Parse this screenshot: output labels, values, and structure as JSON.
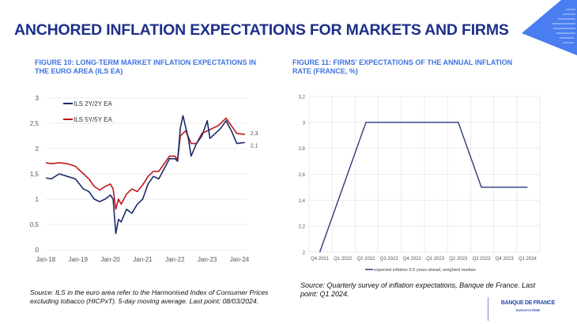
{
  "slide_title": "ANCHORED INFLATION EXPECTATIONS FOR MARKETS AND FIRMS",
  "figure10": {
    "title": "FIGURE 10: LONG-TERM MARKET INFLATION EXPECTATIONS IN THE EURO AREA (ILS EA)",
    "source": "Source: ILS in the euro area refer to the Harmonised Index of Consumer Prices excluding tobacco (HICPxT). 5-day moving average. Last point: 08/03/2024."
  },
  "figure11": {
    "title": "FIGURE 11: FIRMS' EXPECTATIONS OF THE ANNUAL INFLATION RATE (FRANCE, %)",
    "source": "Source: Quarterly survey of inflation expectations, Banque de France. Last point: Q1 2024."
  },
  "logo": {
    "name": "BANQUE DE FRANCE",
    "sub": "EUROSYSTÈME"
  },
  "colors": {
    "title": "#1c2f8a",
    "figure_title": "#3f72e0",
    "navy": "#1b2a6b",
    "red": "#c0151b",
    "accent": "#4a7df0"
  },
  "chart_data": [
    {
      "type": "line",
      "ylim": [
        0,
        3
      ],
      "yticks": [
        "0",
        "0,5",
        "1",
        "1,5",
        "2",
        "2,5",
        "3"
      ],
      "ytick_values": [
        0,
        0.5,
        1,
        1.5,
        2,
        2.5,
        3
      ],
      "xticks": [
        "Jan-18",
        "Jan-19",
        "Jan-20",
        "Jan-21",
        "Jan-22",
        "Jan-23",
        "Jan-24"
      ],
      "grid": "horizontal",
      "legend": "top-left",
      "series": [
        {
          "name": "ILS 2Y/2Y EA",
          "color": "#1b2a6b",
          "end_label": "2,1",
          "x": [
            "2018-01",
            "2018-03",
            "2018-06",
            "2018-09",
            "2018-12",
            "2019-03",
            "2019-05",
            "2019-07",
            "2019-09",
            "2019-11",
            "2020-01",
            "2020-02",
            "2020-03",
            "2020-04",
            "2020-05",
            "2020-07",
            "2020-09",
            "2020-11",
            "2021-01",
            "2021-03",
            "2021-05",
            "2021-07",
            "2021-09",
            "2021-11",
            "2022-01",
            "2022-02",
            "2022-03",
            "2022-04",
            "2022-06",
            "2022-07",
            "2022-09",
            "2022-11",
            "2023-01",
            "2023-02",
            "2023-04",
            "2023-06",
            "2023-08",
            "2023-10",
            "2023-12",
            "2024-03"
          ],
          "y": [
            1.42,
            1.4,
            1.5,
            1.45,
            1.4,
            1.2,
            1.15,
            1.0,
            0.95,
            1.0,
            1.08,
            1.0,
            0.32,
            0.6,
            0.55,
            0.8,
            0.72,
            0.9,
            1.0,
            1.3,
            1.45,
            1.4,
            1.6,
            1.8,
            1.8,
            1.75,
            2.4,
            2.65,
            2.2,
            1.85,
            2.1,
            2.25,
            2.55,
            2.2,
            2.3,
            2.4,
            2.55,
            2.35,
            2.1,
            2.12
          ]
        },
        {
          "name": "ILS 5Y/5Y EA",
          "color": "#c0151b",
          "end_label": "2,3",
          "x": [
            "2018-01",
            "2018-03",
            "2018-06",
            "2018-09",
            "2018-12",
            "2019-03",
            "2019-05",
            "2019-07",
            "2019-09",
            "2019-11",
            "2020-01",
            "2020-02",
            "2020-03",
            "2020-04",
            "2020-05",
            "2020-07",
            "2020-09",
            "2020-11",
            "2021-01",
            "2021-03",
            "2021-05",
            "2021-07",
            "2021-09",
            "2021-11",
            "2022-01",
            "2022-02",
            "2022-03",
            "2022-05",
            "2022-07",
            "2022-09",
            "2022-11",
            "2023-01",
            "2023-03",
            "2023-05",
            "2023-07",
            "2023-08",
            "2023-10",
            "2023-12",
            "2024-03"
          ],
          "y": [
            1.72,
            1.7,
            1.72,
            1.7,
            1.65,
            1.5,
            1.4,
            1.25,
            1.18,
            1.25,
            1.3,
            1.2,
            0.8,
            1.0,
            0.9,
            1.1,
            1.2,
            1.15,
            1.28,
            1.45,
            1.55,
            1.55,
            1.7,
            1.85,
            1.85,
            1.78,
            2.25,
            2.35,
            2.1,
            2.1,
            2.3,
            2.35,
            2.4,
            2.45,
            2.55,
            2.6,
            2.45,
            2.3,
            2.28
          ]
        }
      ]
    },
    {
      "type": "line",
      "ylim": [
        2,
        3.2
      ],
      "yticks": [
        "2",
        "2,2",
        "2,4",
        "2,6",
        "2,8",
        "3",
        "3,2"
      ],
      "ytick_values": [
        2,
        2.2,
        2.4,
        2.6,
        2.8,
        3,
        3.2
      ],
      "categories": [
        "Q4 2021",
        "Q1 2022",
        "Q2 2022",
        "Q3 2022",
        "Q4 2022",
        "Q1 2023",
        "Q2 2023",
        "Q3 2023",
        "Q4 2023",
        "Q1 2024"
      ],
      "grid": "both",
      "legend": "bottom",
      "series": [
        {
          "name": "expected inflation 3-5 years ahead, weighted median",
          "color": "#2b3a7a",
          "values": [
            2.0,
            2.5,
            3.0,
            3.0,
            3.0,
            3.0,
            3.0,
            2.5,
            2.5,
            2.5
          ]
        }
      ]
    }
  ]
}
